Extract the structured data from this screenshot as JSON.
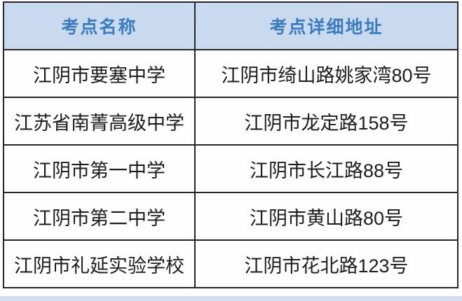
{
  "table": {
    "columns": [
      {
        "label": "考点名称"
      },
      {
        "label": "考点详细地址"
      }
    ],
    "rows": [
      {
        "name": "江阴市要塞中学",
        "address": "江阴市绮山路姚家湾80号"
      },
      {
        "name": "江苏省南菁高级中学",
        "address": "江阴市龙定路158号"
      },
      {
        "name": "江阴市第一中学",
        "address": "江阴市长江路88号"
      },
      {
        "name": "江阴市第二中学",
        "address": "江阴市黄山路80号"
      },
      {
        "name": "江阴市礼延实验学校",
        "address": "江阴市花北路123号"
      }
    ]
  },
  "colors": {
    "header_bg": "#c9d9ee",
    "header_text": "#3a7cc1",
    "body_text": "#1c1c1e",
    "border": "#26262b",
    "bottom_strip": "#d2ddf0"
  }
}
